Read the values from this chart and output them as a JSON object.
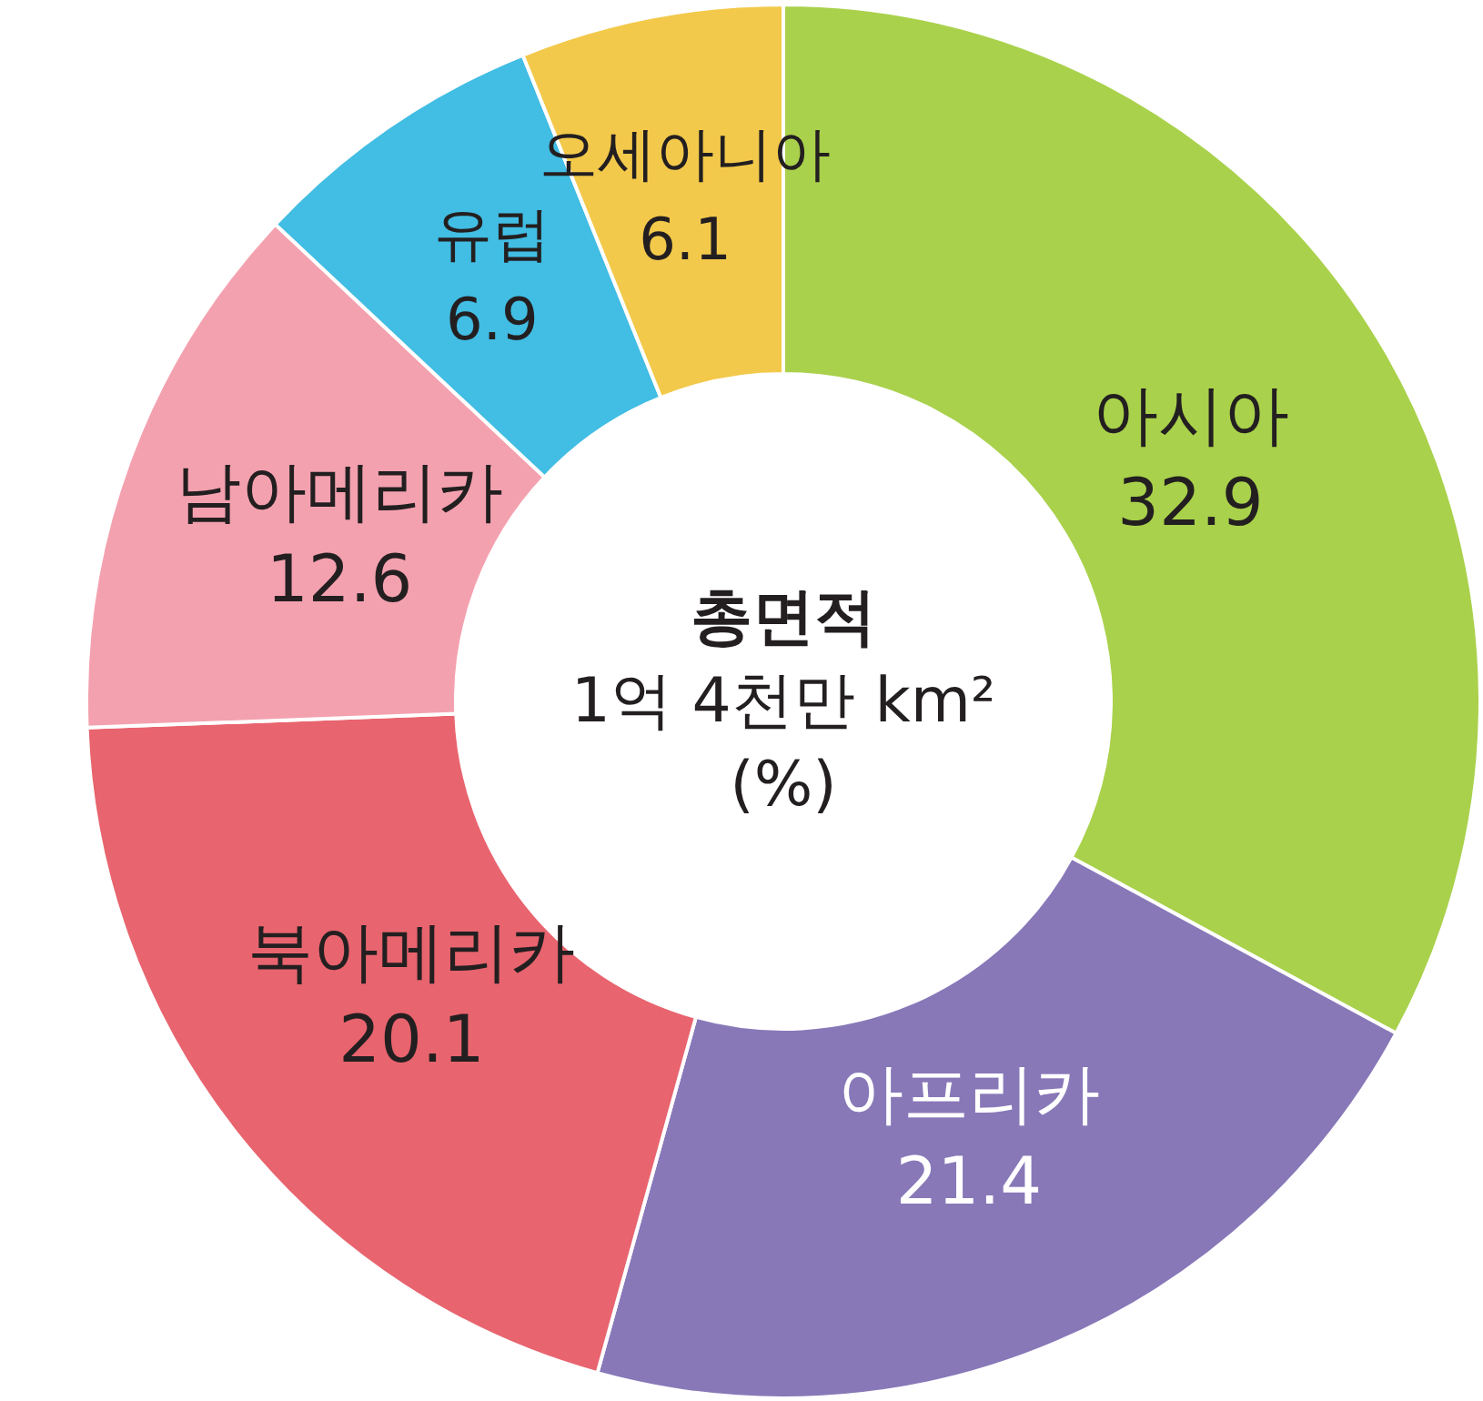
{
  "chart_data": {
    "type": "donut",
    "title": "총면적",
    "subtitle": "1억 4천만 km²",
    "annotations": [
      "(%)"
    ],
    "categories": [
      "아시아",
      "아프리카",
      "북아메리카",
      "남아메리카",
      "유럽",
      "오세아니아"
    ],
    "values": [
      32.9,
      21.4,
      20.1,
      12.6,
      6.9,
      6.1
    ],
    "colors": [
      "#a9d14b",
      "#8878b8",
      "#e8646e",
      "#f4a1af",
      "#42bde3",
      "#f3c94b"
    ],
    "data_labels": true
  }
}
